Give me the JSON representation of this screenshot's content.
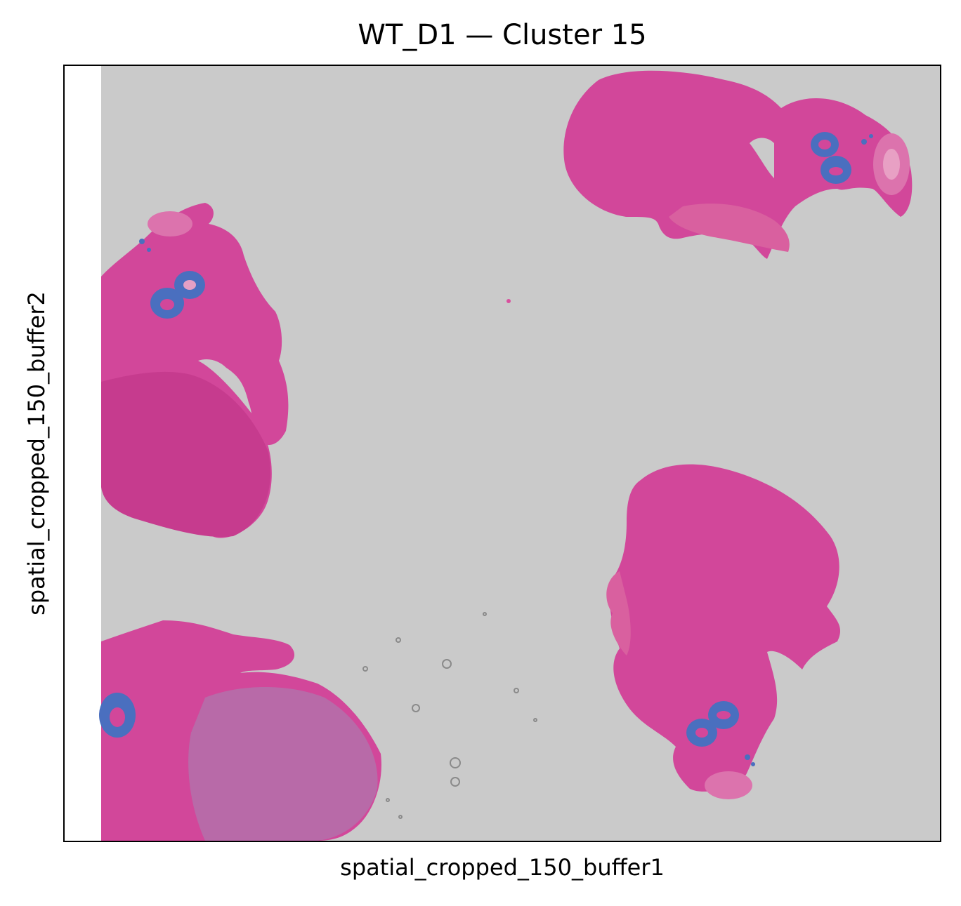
{
  "figure": {
    "title": "WT_D1 — Cluster 15",
    "xlabel": "spatial_cropped_150_buffer1",
    "ylabel": "spatial_cropped_150_buffer2"
  },
  "colors": {
    "background_tissue_slide": "#cacaca",
    "tissue_pink": "#d9509e",
    "tissue_dark": "#c23a8a",
    "cluster_highlight": "#4a6fbf",
    "frame": "#000000"
  }
}
